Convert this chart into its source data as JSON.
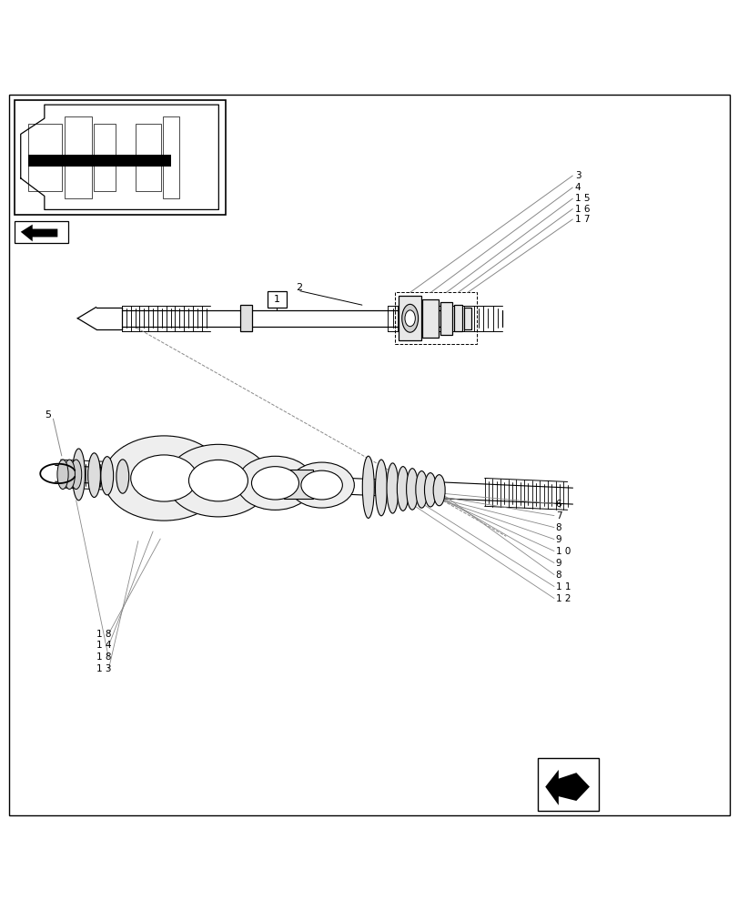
{
  "bg_color": "#ffffff",
  "line_color": "#000000",
  "light_line_color": "#888888",
  "fig_width": 8.12,
  "fig_height": 10.0,
  "dpi": 100
}
